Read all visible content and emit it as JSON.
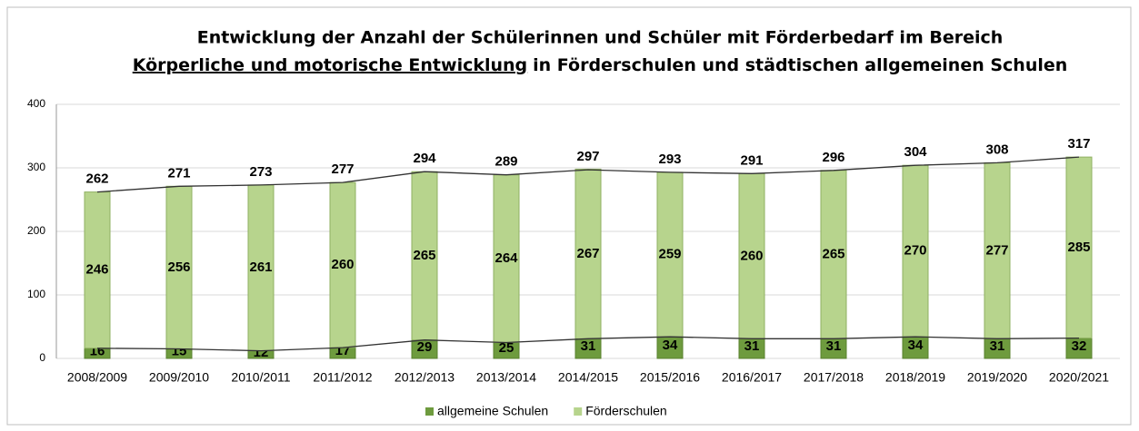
{
  "chart_data": {
    "type": "stacked_bar",
    "title": {
      "line1": "Entwicklung der Anzahl der Schülerinnen und Schüler mit Förderbedarf im Bereich",
      "line2_underlined": "Körperliche und motorische Entwicklung",
      "line2_rest": "in Förderschulen und städtischen allgemeinen Schulen"
    },
    "categories": [
      "2008/2009",
      "2009/2010",
      "2010/2011",
      "2011/2012",
      "2012/2013",
      "2013/2014",
      "2014/2015",
      "2015/2016",
      "2016/2017",
      "2017/2018",
      "2018/2019",
      "2019/2020",
      "2020/2021"
    ],
    "series": [
      {
        "name": "allgemeine Schulen",
        "color": "#6e9b3e",
        "values": [
          16,
          15,
          12,
          17,
          29,
          25,
          31,
          34,
          31,
          31,
          34,
          31,
          32
        ]
      },
      {
        "name": "Förderschulen",
        "color": "#b7d48d",
        "values": [
          246,
          256,
          261,
          260,
          265,
          264,
          267,
          259,
          260,
          265,
          270,
          277,
          285
        ]
      }
    ],
    "totals": [
      262,
      271,
      273,
      277,
      294,
      289,
      297,
      293,
      291,
      296,
      304,
      308,
      317
    ],
    "ylim": [
      0,
      400
    ],
    "yticks": [
      0,
      100,
      200,
      300,
      400
    ],
    "grid": true,
    "legend": "bottom"
  }
}
